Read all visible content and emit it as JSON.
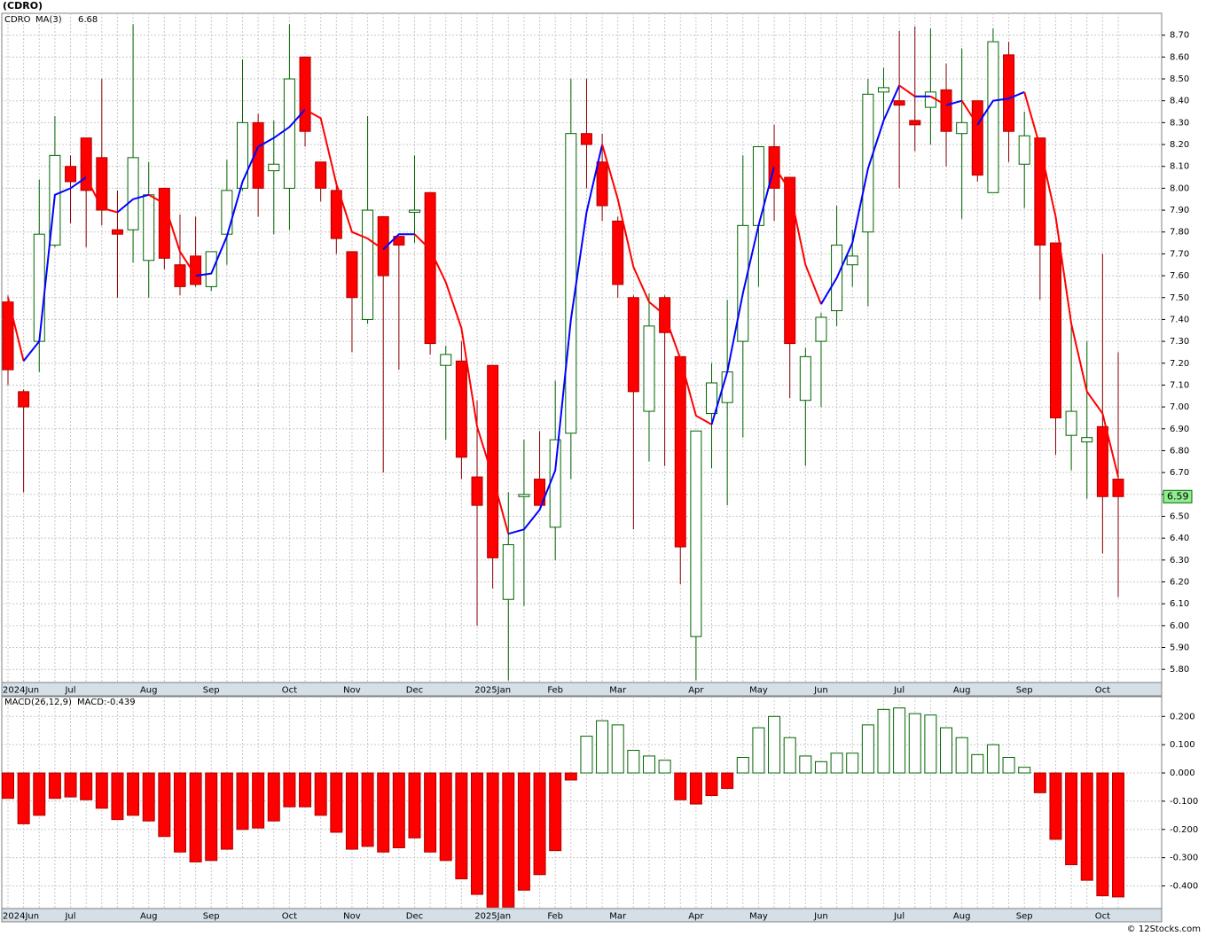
{
  "title": "(CDRO)",
  "footer": "© 12Stocks.com",
  "chart_data": [
    {
      "type": "candlestick",
      "name": "CDRO",
      "name_color": "#008000",
      "categories": [
        "2024Jun",
        null,
        null,
        null,
        "Jul",
        null,
        null,
        null,
        null,
        "Aug",
        null,
        null,
        null,
        "Sep",
        null,
        null,
        null,
        null,
        "Oct",
        null,
        null,
        null,
        "Nov",
        null,
        null,
        null,
        "Dec",
        null,
        null,
        null,
        null,
        "2025Jan",
        null,
        null,
        null,
        "Feb",
        null,
        null,
        null,
        "Mar",
        null,
        null,
        null,
        null,
        "Apr",
        null,
        null,
        null,
        "May",
        null,
        null,
        null,
        "Jun",
        null,
        null,
        null,
        null,
        "Jul",
        null,
        null,
        null,
        "Aug",
        null,
        null,
        null,
        "Sep",
        null,
        null,
        null,
        null,
        "Oct",
        null
      ],
      "open": [
        7.48,
        7.07,
        7.3,
        7.74,
        8.1,
        8.23,
        8.14,
        7.81,
        7.81,
        7.67,
        8.0,
        7.65,
        7.69,
        7.55,
        7.79,
        8.0,
        8.3,
        8.08,
        8.0,
        8.6,
        8.12,
        7.99,
        7.71,
        7.4,
        7.87,
        7.78,
        7.89,
        7.98,
        7.19,
        7.21,
        6.68,
        7.19,
        6.12,
        6.59,
        6.67,
        6.45,
        6.88,
        8.25,
        8.12,
        7.85,
        7.5,
        6.98,
        7.5,
        7.23,
        5.95,
        6.97,
        7.02,
        7.3,
        7.83,
        8.19,
        8.05,
        7.03,
        7.3,
        7.44,
        7.65,
        7.8,
        8.44,
        8.4,
        8.31,
        8.37,
        8.45,
        8.25,
        8.4,
        7.98,
        8.61,
        8.11,
        8.23,
        7.75,
        6.87,
        6.84,
        6.91,
        6.67
      ],
      "high": [
        7.51,
        7.08,
        8.04,
        8.33,
        8.15,
        8.23,
        8.5,
        7.99,
        8.75,
        8.12,
        8.0,
        7.88,
        7.87,
        7.71,
        8.13,
        8.59,
        8.34,
        8.31,
        8.75,
        8.6,
        8.12,
        8.03,
        7.71,
        8.33,
        7.87,
        7.78,
        8.15,
        7.98,
        7.28,
        7.3,
        7.03,
        7.19,
        6.61,
        6.85,
        6.89,
        7.12,
        8.5,
        8.5,
        8.25,
        7.87,
        7.51,
        7.52,
        7.51,
        7.23,
        6.89,
        7.2,
        7.49,
        8.15,
        8.19,
        8.29,
        8.05,
        7.27,
        7.43,
        7.92,
        7.81,
        8.5,
        8.55,
        8.72,
        8.74,
        8.73,
        8.57,
        8.64,
        8.4,
        8.73,
        8.67,
        8.35,
        8.23,
        7.75,
        7.39,
        7.3,
        7.7,
        7.25
      ],
      "low": [
        7.1,
        6.61,
        7.16,
        7.73,
        7.84,
        7.73,
        7.83,
        7.5,
        7.66,
        7.5,
        7.63,
        7.51,
        7.55,
        7.53,
        7.65,
        7.99,
        7.87,
        7.79,
        7.81,
        8.19,
        7.94,
        7.7,
        7.25,
        7.38,
        6.7,
        7.17,
        7.75,
        7.24,
        6.85,
        6.67,
        6.0,
        6.17,
        5.75,
        6.09,
        6.55,
        6.3,
        6.67,
        8.0,
        7.85,
        7.5,
        6.44,
        6.75,
        6.73,
        6.19,
        5.75,
        6.72,
        6.55,
        6.86,
        7.55,
        7.85,
        7.04,
        6.73,
        7.0,
        7.37,
        7.55,
        7.46,
        8.31,
        8.0,
        8.17,
        8.2,
        8.1,
        7.86,
        8.03,
        7.98,
        8.12,
        7.91,
        7.49,
        6.78,
        6.71,
        6.58,
        6.33,
        6.13
      ],
      "close": [
        7.17,
        7.0,
        7.79,
        8.15,
        8.03,
        7.99,
        7.9,
        7.79,
        8.14,
        7.97,
        7.68,
        7.55,
        7.56,
        7.71,
        7.99,
        8.3,
        8.0,
        8.11,
        8.5,
        8.26,
        8.0,
        7.77,
        7.5,
        7.9,
        7.6,
        7.74,
        7.9,
        7.29,
        7.24,
        6.77,
        6.55,
        6.31,
        6.37,
        6.6,
        6.55,
        6.85,
        8.25,
        8.2,
        7.92,
        7.56,
        7.07,
        7.37,
        7.34,
        6.36,
        6.89,
        7.11,
        7.16,
        7.83,
        8.19,
        8.0,
        7.29,
        7.23,
        7.41,
        7.74,
        7.69,
        8.43,
        8.46,
        8.38,
        8.29,
        8.44,
        8.26,
        8.3,
        8.06,
        8.67,
        8.26,
        8.24,
        7.74,
        6.95,
        6.98,
        6.86,
        6.59,
        6.59
      ],
      "up_color": "#006400",
      "down_color": "#ff0000",
      "down_wick_color": "#8b0000",
      "last_price": "6.59",
      "last_price_color": "#90ee90",
      "moving_average": {
        "name": "MA(3)",
        "value_label": "6.68",
        "values": [
          7.5,
          7.21,
          7.3,
          7.97,
          8.0,
          8.05,
          7.91,
          7.89,
          7.95,
          7.97,
          7.93,
          7.71,
          7.6,
          7.61,
          7.78,
          8.03,
          8.19,
          8.23,
          8.28,
          8.36,
          8.32,
          8.02,
          7.8,
          7.77,
          7.72,
          7.79,
          7.79,
          7.72,
          7.57,
          7.36,
          6.91,
          6.68,
          6.42,
          6.44,
          6.53,
          6.71,
          7.4,
          7.89,
          8.2,
          7.95,
          7.64,
          7.48,
          7.42,
          7.22,
          6.96,
          6.92,
          7.16,
          7.52,
          7.83,
          8.1,
          7.99,
          7.65,
          7.47,
          7.59,
          7.75,
          8.09,
          8.31,
          8.47,
          8.42,
          8.42,
          8.38,
          8.4,
          8.29,
          8.4,
          8.41,
          8.44,
          8.19,
          7.87,
          7.38,
          7.07,
          6.97,
          6.68
        ],
        "up_color": "#0000ff",
        "down_color": "#ff0000"
      },
      "ylim": [
        5.74,
        8.8
      ],
      "yticks": [
        {
          "value": 5.8,
          "label": "5.80"
        },
        {
          "value": 5.9,
          "label": "5.90"
        },
        {
          "value": 6.0,
          "label": "6.00"
        },
        {
          "value": 6.1,
          "label": "6.10"
        },
        {
          "value": 6.2,
          "label": "6.20"
        },
        {
          "value": 6.3,
          "label": "6.30"
        },
        {
          "value": 6.4,
          "label": "6.40"
        },
        {
          "value": 6.5,
          "label": "6.50"
        },
        {
          "value": 6.6,
          "label": "6.60"
        },
        {
          "value": 6.7,
          "label": "6.70"
        },
        {
          "value": 6.8,
          "label": "6.80"
        },
        {
          "value": 6.9,
          "label": "6.90"
        },
        {
          "value": 7.0,
          "label": "7.00"
        },
        {
          "value": 7.1,
          "label": "7.10"
        },
        {
          "value": 7.2,
          "label": "7.20"
        },
        {
          "value": 7.3,
          "label": "7.30"
        },
        {
          "value": 7.4,
          "label": "7.40"
        },
        {
          "value": 7.5,
          "label": "7.50"
        },
        {
          "value": 7.6,
          "label": "7.60"
        },
        {
          "value": 7.7,
          "label": "7.70"
        },
        {
          "value": 7.8,
          "label": "7.80"
        },
        {
          "value": 7.9,
          "label": "7.90"
        },
        {
          "value": 8.0,
          "label": "8.00"
        },
        {
          "value": 8.1,
          "label": "8.10"
        },
        {
          "value": 8.2,
          "label": "8.20"
        },
        {
          "value": 8.3,
          "label": "8.30"
        },
        {
          "value": 8.4,
          "label": "8.40"
        },
        {
          "value": 8.5,
          "label": "8.50"
        },
        {
          "value": 8.6,
          "label": "8.60"
        },
        {
          "value": 8.7,
          "label": "8.70"
        }
      ],
      "grid": true
    },
    {
      "type": "bar",
      "name": "MACD(26,12,9)",
      "value_label": "MACD:-0.439",
      "categories": [
        "2024Jun",
        null,
        null,
        null,
        "Jul",
        null,
        null,
        null,
        null,
        "Aug",
        null,
        null,
        null,
        "Sep",
        null,
        null,
        null,
        null,
        "Oct",
        null,
        null,
        null,
        "Nov",
        null,
        null,
        null,
        "Dec",
        null,
        null,
        null,
        null,
        "2025Jan",
        null,
        null,
        null,
        "Feb",
        null,
        null,
        null,
        "Mar",
        null,
        null,
        null,
        null,
        "Apr",
        null,
        null,
        null,
        "May",
        null,
        null,
        null,
        "Jun",
        null,
        null,
        null,
        null,
        "Jul",
        null,
        null,
        null,
        "Aug",
        null,
        null,
        null,
        "Sep",
        null,
        null,
        null,
        null,
        "Oct",
        null
      ],
      "values": [
        -0.09,
        -0.18,
        -0.15,
        -0.09,
        -0.085,
        -0.095,
        -0.125,
        -0.165,
        -0.15,
        -0.17,
        -0.225,
        -0.28,
        -0.315,
        -0.31,
        -0.27,
        -0.2,
        -0.195,
        -0.17,
        -0.12,
        -0.12,
        -0.15,
        -0.21,
        -0.27,
        -0.26,
        -0.28,
        -0.265,
        -0.23,
        -0.28,
        -0.31,
        -0.375,
        -0.43,
        -0.475,
        -0.475,
        -0.415,
        -0.36,
        -0.275,
        -0.025,
        0.13,
        0.185,
        0.17,
        0.08,
        0.06,
        0.045,
        -0.095,
        -0.11,
        -0.08,
        -0.055,
        0.055,
        0.16,
        0.2,
        0.125,
        0.06,
        0.04,
        0.07,
        0.07,
        0.17,
        0.225,
        0.23,
        0.21,
        0.205,
        0.16,
        0.125,
        0.065,
        0.1,
        0.055,
        0.02,
        -0.07,
        -0.235,
        -0.325,
        -0.38,
        -0.435,
        -0.439
      ],
      "up_color": "#006400",
      "down_color": "#ff0000",
      "name_color": "#000000",
      "value_label_color": "#0000cc",
      "ylim": [
        -0.48,
        0.27
      ],
      "yticks": [
        {
          "value": 0.2,
          "label": "0.200"
        },
        {
          "value": 0.1,
          "label": "0.100"
        },
        {
          "value": 0,
          "label": "0.000"
        },
        {
          "value": -0.1,
          "label": "-0.100"
        },
        {
          "value": -0.2,
          "label": "-0.200"
        },
        {
          "value": -0.3,
          "label": "-0.300"
        },
        {
          "value": -0.4,
          "label": "-0.400"
        }
      ],
      "grid": true
    }
  ]
}
